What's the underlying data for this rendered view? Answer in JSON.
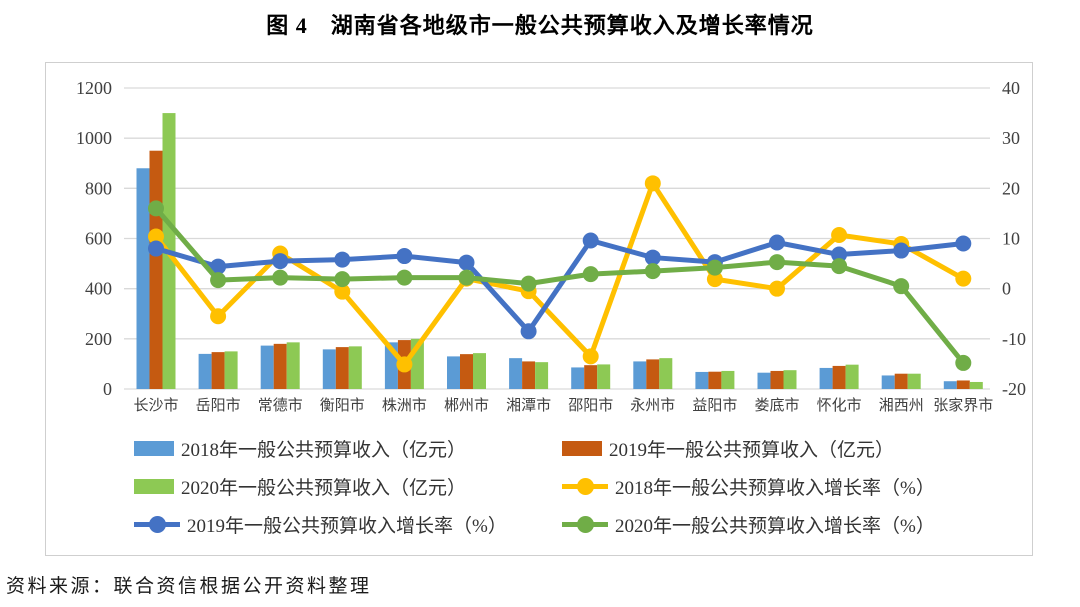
{
  "page": {
    "title": "图 4　湖南省各地级市一般公共预算收入及增长率情况",
    "source_note": "资料来源：联合资信根据公开资料整理"
  },
  "colors": {
    "grid": "#D9D9D9",
    "axis_text": "#404040",
    "figure_border": "#CFCFCF",
    "bar_2018": "#5B9BD5",
    "bar_2019": "#C55A11",
    "bar_2020": "#8DC954",
    "line_2018": "#FFC000",
    "line_2019": "#4472C4",
    "line_2020": "#70AD47"
  },
  "chart_data": {
    "type": "combo-bar-line",
    "title": "图 4　湖南省各地级市一般公共预算收入及增长率情况",
    "categories": [
      "长沙市",
      "岳阳市",
      "常德市",
      "衡阳市",
      "株洲市",
      "郴州市",
      "湘潭市",
      "邵阳市",
      "永州市",
      "益阳市",
      "娄底市",
      "怀化市",
      "湘西州",
      "张家界市"
    ],
    "left_axis": {
      "min": 0,
      "max": 1200,
      "step": 200,
      "ticks": [
        0,
        200,
        400,
        600,
        800,
        1000,
        1200
      ],
      "unit": "亿元"
    },
    "right_axis": {
      "min": -20,
      "max": 40,
      "step": 10,
      "ticks": [
        -20,
        -10,
        0,
        10,
        20,
        30,
        40
      ],
      "unit": "%"
    },
    "grid": true,
    "legend_position": "bottom",
    "series": [
      {
        "key": "rev2018",
        "name": "2018年一般公共预算收入（亿元）",
        "type": "bar",
        "axis": "left",
        "color": "#5B9BD5",
        "values": [
          880,
          140,
          173,
          158,
          186,
          130,
          123,
          86,
          110,
          68,
          65,
          84,
          54,
          31
        ]
      },
      {
        "key": "rev2019",
        "name": "2019年一般公共预算收入（亿元）",
        "type": "bar",
        "axis": "left",
        "color": "#C55A11",
        "values": [
          950,
          147,
          180,
          167,
          195,
          139,
          110,
          95,
          118,
          69,
          72,
          92,
          61,
          34
        ]
      },
      {
        "key": "rev2020",
        "name": "2020年一般公共预算收入（亿元）",
        "type": "bar",
        "axis": "left",
        "color": "#8DC954",
        "values": [
          1100,
          150,
          186,
          170,
          200,
          143,
          107,
          98,
          123,
          72,
          75,
          97,
          61,
          28
        ]
      },
      {
        "key": "gr2018",
        "name": "2018年一般公共预算收入增长率（%）",
        "type": "line",
        "axis": "right",
        "color": "#FFC000",
        "values": [
          10.4,
          -5.5,
          7.0,
          -0.6,
          -15.1,
          2.0,
          -0.5,
          -13.5,
          21.0,
          1.9,
          0.0,
          10.7,
          8.9,
          2.0
        ]
      },
      {
        "key": "gr2019",
        "name": "2019年一般公共预算收入增长率（%）",
        "type": "line",
        "axis": "right",
        "color": "#4472C4",
        "values": [
          8.0,
          4.4,
          5.5,
          5.8,
          6.5,
          5.2,
          -8.5,
          9.6,
          6.2,
          5.3,
          9.2,
          6.8,
          7.6,
          9.0
        ]
      },
      {
        "key": "gr2020",
        "name": "2020年一般公共预算收入增长率（%）",
        "type": "line",
        "axis": "right",
        "color": "#70AD47",
        "values": [
          16.0,
          1.7,
          2.2,
          1.9,
          2.2,
          2.2,
          1.0,
          2.9,
          3.5,
          4.2,
          5.3,
          4.5,
          0.5,
          -14.8
        ]
      }
    ]
  }
}
